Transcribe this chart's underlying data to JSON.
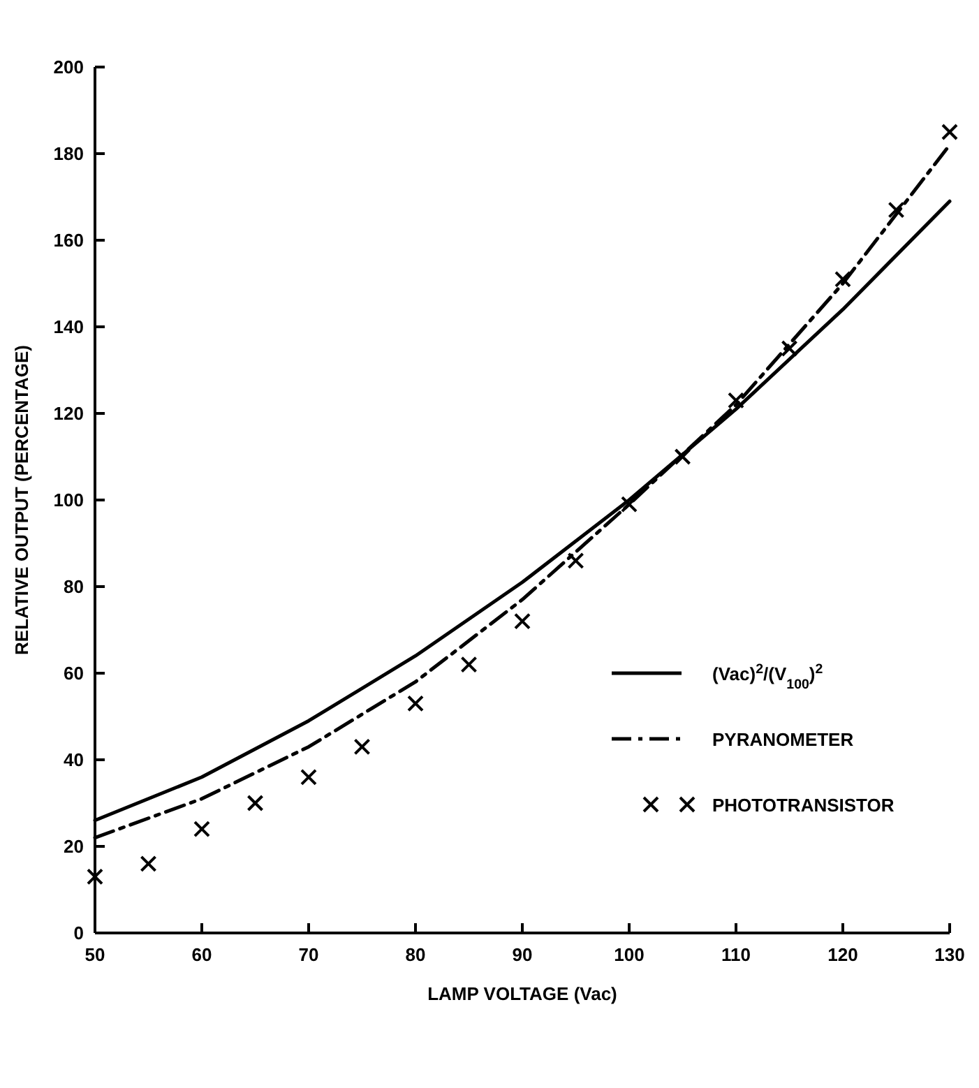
{
  "chart_data": {
    "type": "line",
    "xlabel": "LAMP VOLTAGE (Vac)",
    "ylabel": "RELATIVE OUTPUT (PERCENTAGE)",
    "xlim": [
      50,
      130
    ],
    "xticks": [
      50,
      60,
      70,
      80,
      90,
      100,
      110,
      120,
      130
    ],
    "ylim": [
      0,
      200
    ],
    "yticks": [
      0,
      20,
      40,
      60,
      80,
      100,
      120,
      140,
      160,
      180,
      200
    ],
    "grid": false,
    "legend": "right",
    "series": [
      {
        "name": "(Vac)$^{2}$/(V$_{100}$)$^{2}$",
        "color": "#000000",
        "line_style": "solid",
        "marker": "none",
        "x": [
          50,
          60,
          70,
          80,
          90,
          100,
          110,
          120,
          130
        ],
        "values": [
          26,
          36,
          49,
          64,
          81,
          100,
          121,
          144,
          169
        ]
      },
      {
        "name": "PYRANOMETER",
        "color": "#000000",
        "line_style": "dashed",
        "marker": "none",
        "x": [
          50,
          60,
          70,
          80,
          90,
          95,
          100,
          110,
          120,
          130
        ],
        "values": [
          22,
          31,
          43,
          58,
          77,
          88,
          99,
          122,
          150,
          182
        ]
      },
      {
        "name": "PHOTOTRANSISTOR",
        "type": "scatter",
        "color": "#000000",
        "marker": "cross",
        "x": [
          50,
          55,
          60,
          65,
          70,
          75,
          80,
          85,
          90,
          95,
          100,
          105,
          110,
          115,
          120,
          125,
          130
        ],
        "values": [
          13,
          16,
          24,
          30,
          36,
          43,
          53,
          62,
          72,
          86,
          99,
          110,
          123,
          135,
          151,
          167,
          185
        ]
      }
    ]
  }
}
